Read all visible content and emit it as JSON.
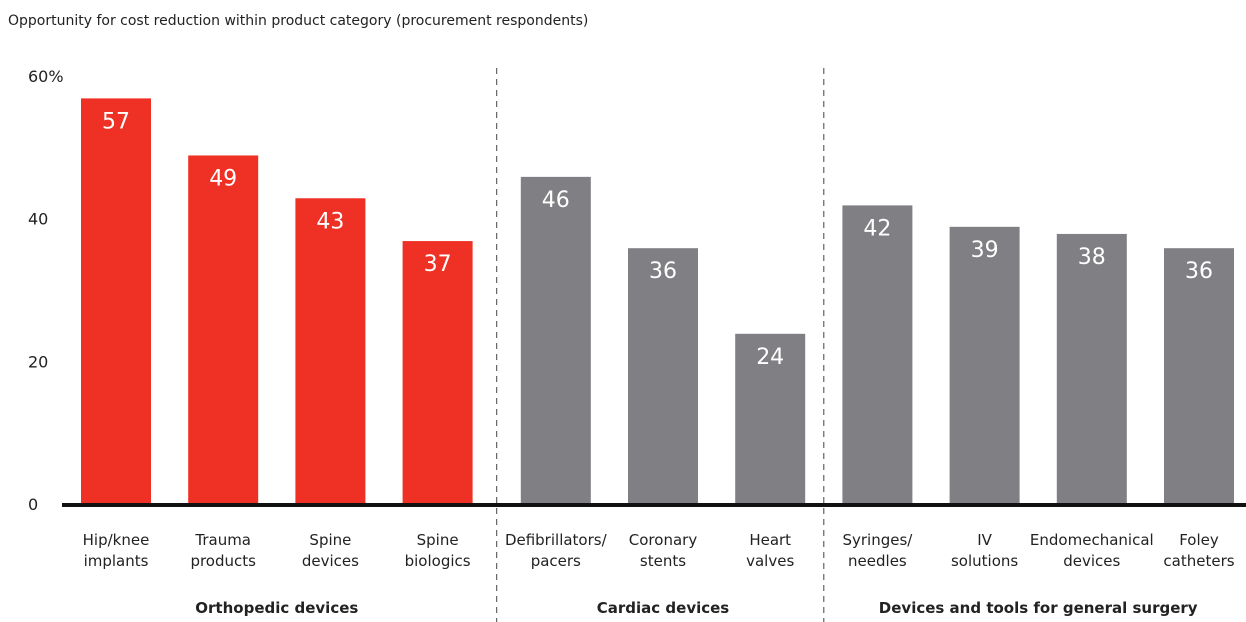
{
  "chart_data": {
    "type": "bar",
    "title": "Opportunity for cost reduction within product category (procurement respondents)",
    "categories": [
      "Hip/knee\nimplants",
      "Trauma\nproducts",
      "Spine\ndevices",
      "Spine\nbiologics",
      "Defibrillators/\npacers",
      "Coronary\nstents",
      "Heart\nvalves",
      "Syringes/\nneedles",
      "IV\nsolutions",
      "Endomechanical\ndevices",
      "Foley\ncatheters"
    ],
    "values": [
      57,
      49,
      43,
      37,
      46,
      36,
      24,
      42,
      39,
      38,
      36
    ],
    "groups": [
      {
        "name": "Orthopedic devices",
        "count": 4,
        "color": "#ee3124"
      },
      {
        "name": "Cardiac devices",
        "count": 3,
        "color": "#808084"
      },
      {
        "name": "Devices and tools for general surgery",
        "count": 4,
        "color": "#808084"
      }
    ],
    "ylim": [
      0,
      60
    ],
    "yticks": [
      0,
      20,
      40,
      {
        "value": 60,
        "label": "60%"
      }
    ],
    "grid": false
  }
}
